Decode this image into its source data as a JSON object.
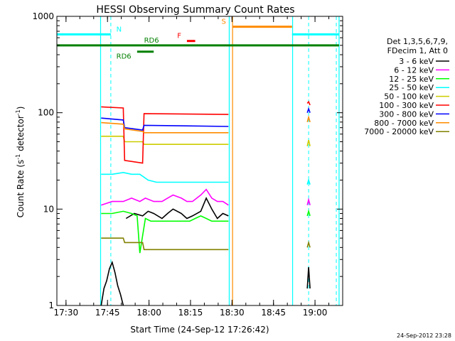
{
  "chart_data": {
    "type": "line",
    "title": "HESSI Observing Summary Count Rates",
    "xlabel": "Start Time (24-Sep-12 17:26:42)",
    "ylabel_main": "Count Rate (s",
    "ylabel_sup1": "-1",
    "ylabel_mid": " detector",
    "ylabel_sup2": "-1",
    "ylabel_end": ")",
    "timestamp": "24-Sep-2012 23:28",
    "yscale": "log",
    "xlim": [
      "17:26:42",
      "19:10:00"
    ],
    "ylim": [
      1,
      1000
    ],
    "xticks": [
      "17:30",
      "17:45",
      "18:00",
      "18:15",
      "18:30",
      "18:45",
      "19:00"
    ],
    "xtick_minutes": [
      3.3,
      18.3,
      33.3,
      48.3,
      63.3,
      78.3,
      93.3
    ],
    "yticks": [
      {
        "value": 1,
        "label": "1"
      },
      {
        "value": 10,
        "label": "10"
      },
      {
        "value": 100,
        "label": "100"
      },
      {
        "value": 1000,
        "label": "1000"
      }
    ],
    "legend_position": "right",
    "legend_header": [
      "Det 1,3,5,6,7,9,",
      "FDecim 1, Att 0"
    ],
    "series": [
      {
        "name": "3 - 6 keV",
        "color": "#000000",
        "segments": [
          {
            "x": [
              16,
              17,
              18,
              19,
              20,
              21,
              22,
              23,
              24
            ],
            "y": [
              1,
              1.5,
              1.8,
              2.4,
              2.8,
              2.2,
              1.6,
              1.3,
              1
            ]
          },
          {
            "x": [
              25,
              28,
              31,
              33,
              35,
              38,
              40,
              42,
              45,
              47,
              49,
              52,
              54,
              56,
              58,
              60,
              62
            ],
            "y": [
              8,
              9,
              8.5,
              9.5,
              9,
              8,
              9,
              10,
              9,
              8,
              8.5,
              9.5,
              13,
              10,
              8,
              9,
              8.5
            ]
          },
          {
            "x": [
              90.5,
              91,
              91.5
            ],
            "y": [
              1.5,
              2.5,
              1.5
            ]
          }
        ]
      },
      {
        "name": "6 - 12 keV",
        "color": "#ff00ff",
        "segments": [
          {
            "x": [
              16,
              20,
              24,
              27,
              30,
              32,
              35,
              38,
              40,
              42,
              45,
              47,
              49,
              52,
              54,
              56,
              58,
              60,
              62
            ],
            "y": [
              11,
              12,
              12,
              13,
              12,
              13,
              12,
              12,
              13,
              14,
              13,
              12,
              12,
              14,
              16,
              13,
              12,
              12,
              11
            ]
          },
          {
            "x": [
              90.5,
              91,
              91.5
            ],
            "y": [
              11,
              12.5,
              11
            ]
          }
        ]
      },
      {
        "name": "12 - 25 keV",
        "color": "#00ff00",
        "segments": [
          {
            "x": [
              16,
              20,
              24,
              27,
              29,
              30,
              32,
              34,
              36,
              38,
              40,
              42,
              44,
              46,
              48,
              50,
              52,
              54,
              56,
              58,
              60,
              62
            ],
            "y": [
              9,
              9,
              9.5,
              9,
              8.5,
              3.5,
              8,
              7.5,
              7.5,
              7.5,
              7.5,
              7.5,
              7.5,
              7.5,
              7.5,
              8,
              8.5,
              8,
              7.5,
              7.5,
              7.5,
              7.5
            ]
          },
          {
            "x": [
              90.5,
              91,
              91.5
            ],
            "y": [
              8.5,
              9.5,
              8.5
            ]
          }
        ]
      },
      {
        "name": "25 - 50 keV",
        "color": "#00ffff",
        "segments": [
          {
            "x": [
              16,
              20,
              24,
              27,
              30,
              33,
              36,
              40,
              44,
              48,
              52,
              56,
              60,
              62
            ],
            "y": [
              23,
              23,
              24,
              23,
              23,
              20,
              19,
              19,
              19,
              19,
              19,
              19,
              19,
              19
            ]
          },
          {
            "x": [
              90.5,
              91,
              91.5
            ],
            "y": [
              18,
              20,
              18
            ]
          }
        ]
      },
      {
        "name": "50 - 100 keV",
        "color": "#cccc00",
        "segments": [
          {
            "x": [
              16,
              24,
              24.5,
              31,
              31.5,
              62
            ],
            "y": [
              57,
              57,
              50,
              50,
              47,
              47
            ]
          },
          {
            "x": [
              90.5,
              91,
              91.5
            ],
            "y": [
              45,
              52,
              45
            ]
          }
        ]
      },
      {
        "name": "100 - 300 keV",
        "color": "#ff0000",
        "segments": [
          {
            "x": [
              16,
              24,
              24.5,
              31,
              31.5,
              62
            ],
            "y": [
              115,
              112,
              32,
              30,
              98,
              96
            ]
          },
          {
            "x": [
              90.5,
              91,
              91.5
            ],
            "y": [
              125,
              130,
              120
            ]
          }
        ]
      },
      {
        "name": "300 - 800 keV",
        "color": "#0000ff",
        "segments": [
          {
            "x": [
              16,
              24,
              24.5,
              31,
              31.5,
              62
            ],
            "y": [
              88,
              84,
              70,
              66,
              74,
              72
            ]
          },
          {
            "x": [
              90.5,
              91,
              91.5
            ],
            "y": [
              100,
              110,
              100
            ]
          }
        ]
      },
      {
        "name": "800 - 7000 keV",
        "color": "#ff8c00",
        "segments": [
          {
            "x": [
              16,
              24,
              24.5,
              31,
              31.5,
              62
            ],
            "y": [
              79,
              76,
              68,
              64,
              62,
              62
            ]
          },
          {
            "x": [
              90.5,
              91,
              91.5
            ],
            "y": [
              80,
              90,
              80
            ]
          }
        ]
      },
      {
        "name": "7000 - 20000 keV",
        "color": "#808000",
        "segments": [
          {
            "x": [
              16,
              24,
              24.5,
              31,
              31.5,
              62
            ],
            "y": [
              5,
              5,
              4.5,
              4.5,
              3.8,
              3.8
            ]
          },
          {
            "x": [
              90.5,
              91,
              91.5
            ],
            "y": [
              4,
              4.5,
              4
            ]
          }
        ]
      }
    ],
    "flags": [
      {
        "label": "N",
        "color": "#00ffff",
        "y": 650,
        "segments": [
          [
            0,
            19.5
          ],
          [
            85,
            102
          ]
        ],
        "label_x": 21.5
      },
      {
        "label": "S",
        "color": "#ff8c00",
        "y": 780,
        "segments": [
          [
            63.5,
            85
          ]
        ],
        "label_x": 59.5
      },
      {
        "label": "F",
        "color": "#ff0000",
        "y": 555,
        "segments": [
          [
            47,
            50
          ]
        ],
        "label_x": 43.5
      },
      {
        "label": "RD6",
        "color": "#008000",
        "y": 500,
        "segments": [
          [
            0,
            102
          ]
        ],
        "label_x": 31.5
      },
      {
        "label": "RD6",
        "color": "#008000",
        "y": 430,
        "segments": [
          [
            29,
            35
          ]
        ],
        "label_x": 21.5
      }
    ],
    "saa_boundaries": {
      "color": "#00ffff",
      "solid": [
        15.8,
        62.3,
        85.2,
        102
      ],
      "dashed": [
        19.5,
        91,
        101
      ]
    },
    "vertical_markers": [
      {
        "x": 63.5,
        "color": "#ff8c00"
      }
    ]
  }
}
